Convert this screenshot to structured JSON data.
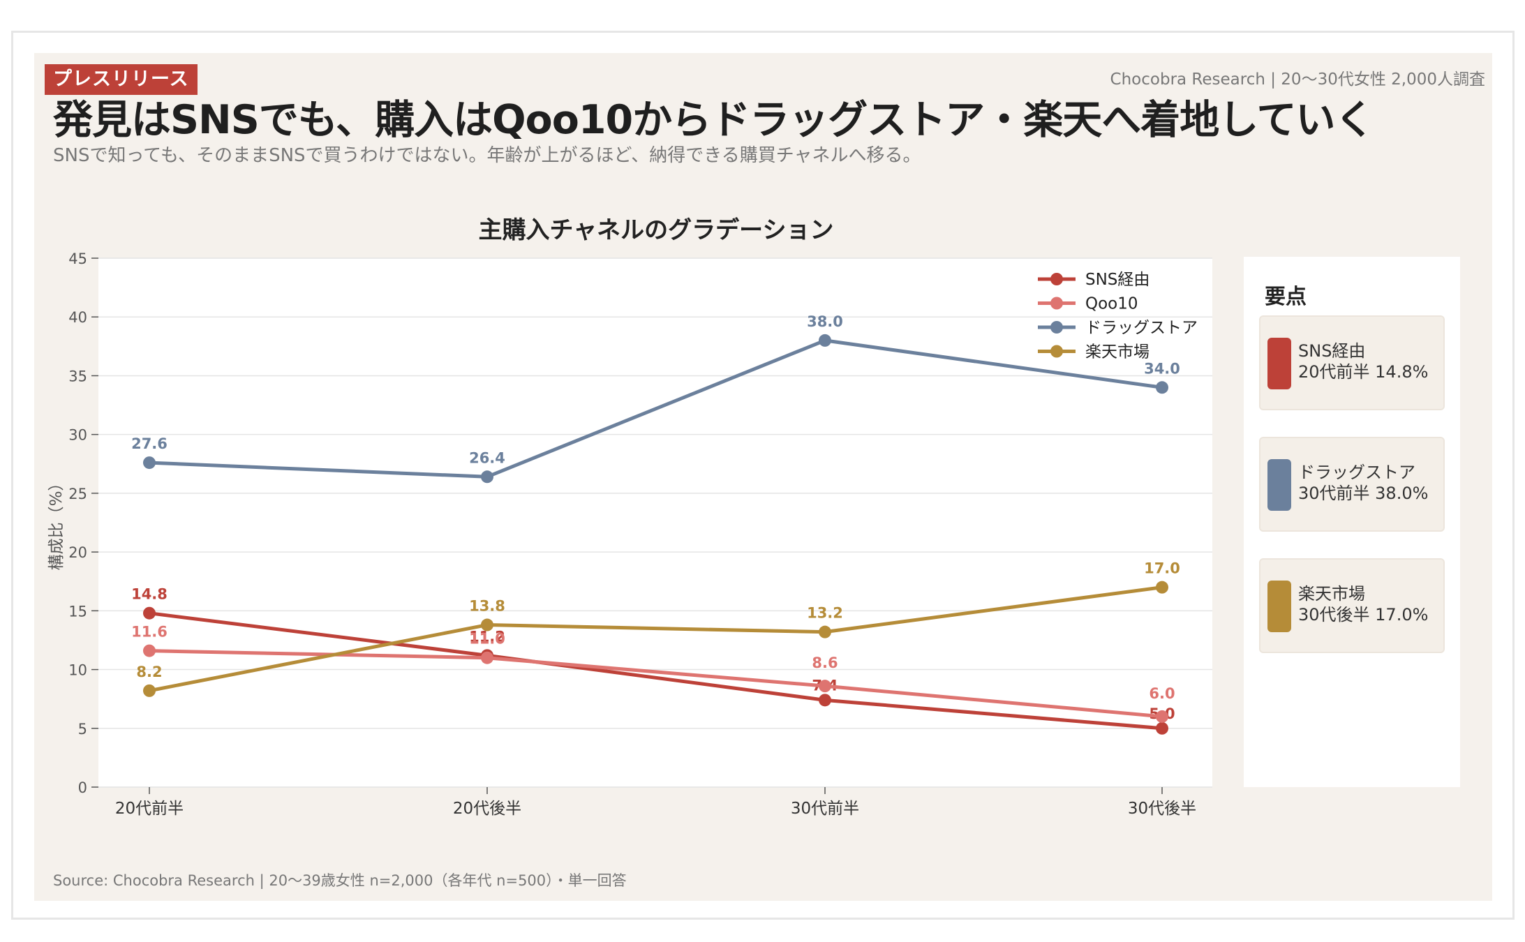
{
  "header": {
    "badge": "プレスリリース",
    "source_top": "Chocobra Research | 20〜30代女性 2,000人調査",
    "title": "発見はSNSでも、購入はQoo10からドラッグストア・楽天へ着地していく",
    "subtitle": "SNSで知っても、そのままSNSで買うわけではない。年齢が上がるほど、納得できる購買チャネルへ移る。"
  },
  "chart_data": {
    "type": "line",
    "title": "主購入チャネルのグラデーション",
    "xlabel": "",
    "ylabel": "構成比（%）",
    "categories": [
      "20代前半",
      "20代後半",
      "30代前半",
      "30代後半"
    ],
    "ylim": [
      0,
      45
    ],
    "yticks": [
      0,
      5,
      10,
      15,
      20,
      25,
      30,
      35,
      40,
      45
    ],
    "grid": true,
    "legend_position": "top-right",
    "series": [
      {
        "name": "SNS経由",
        "color": "#bd4138",
        "values": [
          14.8,
          11.2,
          7.4,
          5.0
        ]
      },
      {
        "name": "Qoo10",
        "color": "#de7470",
        "values": [
          11.6,
          11.0,
          8.6,
          6.0
        ]
      },
      {
        "name": "ドラッグストア",
        "color": "#6b809c",
        "values": [
          27.6,
          26.4,
          38.0,
          34.0
        ]
      },
      {
        "name": "楽天市場",
        "color": "#b58c38",
        "values": [
          8.2,
          13.8,
          13.2,
          17.0
        ]
      }
    ]
  },
  "side_panel": {
    "title": "要点",
    "items": [
      {
        "line1": "SNS経由",
        "line2": "20代前半 14.8%",
        "color": "#bd4138"
      },
      {
        "line1": "ドラッグストア",
        "line2": "30代前半 38.0%",
        "color": "#6b809c"
      },
      {
        "line1": "楽天市場",
        "line2": "30代後半 17.0%",
        "color": "#b58c38"
      }
    ]
  },
  "footer": {
    "source": "Source: Chocobra Research | 20〜39歳女性 n=2,000（各年代 n=500）・単一回答"
  }
}
